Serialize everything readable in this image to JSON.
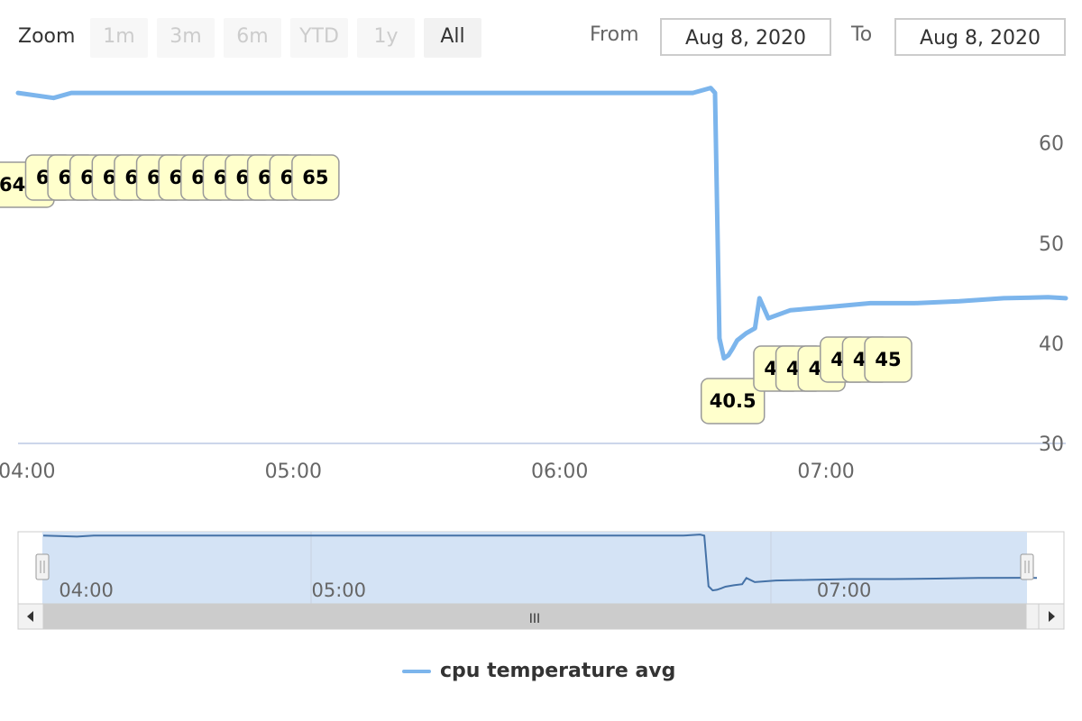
{
  "range_selector": {
    "zoom_label": "Zoom",
    "buttons": [
      "1m",
      "3m",
      "6m",
      "YTD",
      "1y",
      "All"
    ],
    "active": "All",
    "from_label": "From",
    "from_value": "Aug 8, 2020",
    "to_label": "To",
    "to_value": "Aug 8, 2020"
  },
  "navigator": {
    "x_ticks": [
      "04:00",
      "05:00",
      "07:00"
    ],
    "scrollbar_grip": "III"
  },
  "legend": {
    "series_name": "cpu temperature avg"
  },
  "colors": {
    "series": "#7cb5ec",
    "label_bg": "#ffffcc",
    "navigator_mask": "#d4e3f5"
  },
  "chart_data": {
    "type": "line",
    "title": "",
    "xlabel": "",
    "ylabel": "",
    "x_ticks": [
      "04:00",
      "05:00",
      "06:00",
      "07:00"
    ],
    "y_ticks": [
      30,
      40,
      50,
      60
    ],
    "ylim": [
      30,
      66
    ],
    "xlim": [
      "03:58",
      "07:54"
    ],
    "grid": false,
    "legend_position": "bottom-center",
    "series": [
      {
        "name": "cpu temperature avg",
        "x": [
          "03:58",
          "04:06",
          "04:10",
          "04:20",
          "04:30",
          "04:40",
          "04:50",
          "05:00",
          "05:10",
          "05:20",
          "05:30",
          "05:40",
          "05:50",
          "06:00",
          "06:10",
          "06:20",
          "06:30",
          "06:34",
          "06:35",
          "06:36",
          "06:37",
          "06:38",
          "06:39",
          "06:40",
          "06:42",
          "06:44",
          "06:45",
          "06:47",
          "06:52",
          "07:00",
          "07:10",
          "07:20",
          "07:30",
          "07:40",
          "07:50",
          "07:54"
        ],
        "y": [
          65,
          64.5,
          65,
          65,
          65,
          65,
          65,
          65,
          65,
          65,
          65,
          65,
          65,
          65,
          65,
          65,
          65,
          65.5,
          65,
          40.5,
          38.5,
          38.8,
          39.5,
          40.3,
          41,
          41.5,
          44.5,
          42.5,
          43.3,
          43.6,
          44,
          44,
          44.2,
          44.5,
          44.6,
          44.5
        ]
      }
    ],
    "data_labels": [
      {
        "x": "03:59",
        "y": 64.5
      },
      {
        "x": "04:05",
        "y": 65
      },
      {
        "x": "04:10",
        "y": 65
      },
      {
        "x": "04:15",
        "y": 65
      },
      {
        "x": "04:20",
        "y": 65
      },
      {
        "x": "04:25",
        "y": 65
      },
      {
        "x": "04:30",
        "y": 65
      },
      {
        "x": "04:35",
        "y": 65
      },
      {
        "x": "04:40",
        "y": 65
      },
      {
        "x": "04:45",
        "y": 65
      },
      {
        "x": "04:50",
        "y": 65
      },
      {
        "x": "04:55",
        "y": 65
      },
      {
        "x": "05:00",
        "y": 65
      },
      {
        "x": "05:05",
        "y": 65
      },
      {
        "x": "06:39",
        "y": 40.5
      },
      {
        "x": "06:49",
        "y": 44
      },
      {
        "x": "06:54",
        "y": 44
      },
      {
        "x": "06:59",
        "y": 44
      },
      {
        "x": "07:04",
        "y": 45
      },
      {
        "x": "07:09",
        "y": 45
      },
      {
        "x": "07:14",
        "y": 45
      }
    ],
    "data_label_positions_note": ""
  }
}
